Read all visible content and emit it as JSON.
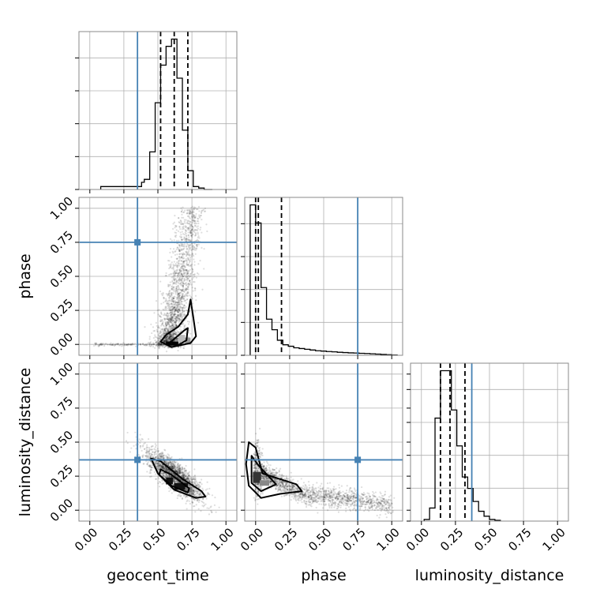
{
  "chart_data": {
    "type": "corner",
    "parameters": [
      "geocent_time",
      "phase",
      "luminosity_distance"
    ],
    "axis_labels": {
      "x": [
        "geocent_time",
        "phase",
        "luminosity_distance"
      ],
      "y": [
        "phase",
        "luminosity_distance"
      ]
    },
    "range": [
      0,
      1
    ],
    "ticks": [
      0.0,
      0.25,
      0.5,
      0.75,
      1.0
    ],
    "tick_labels": [
      "0.00",
      "0.25",
      "0.50",
      "0.75",
      "1.00"
    ],
    "grid": true,
    "truths": {
      "geocent_time": 0.35,
      "phase": 0.75,
      "luminosity_distance": 0.37
    },
    "truth_color": "#4682b4",
    "line_color": "#000000",
    "quantiles": {
      "geocent_time": [
        0.52,
        0.62,
        0.72
      ],
      "phase": [
        0.0,
        0.02,
        0.19
      ],
      "luminosity_distance": [
        0.14,
        0.21,
        0.32
      ]
    },
    "histograms": {
      "geocent_time": {
        "bins": [
          0.08,
          0.1,
          0.12,
          0.14,
          0.16,
          0.18,
          0.2,
          0.22,
          0.24,
          0.26,
          0.28,
          0.3,
          0.32,
          0.34,
          0.36,
          0.38,
          0.4,
          0.42,
          0.44,
          0.46,
          0.48,
          0.5,
          0.52,
          0.54,
          0.56,
          0.58,
          0.6,
          0.62,
          0.64,
          0.66,
          0.68,
          0.7,
          0.72,
          0.74,
          0.76,
          0.78,
          0.8,
          0.82,
          0.84,
          0.86,
          0.88,
          0.9
        ],
        "counts": [
          0.02,
          0.02,
          0.02,
          0.02,
          0.02,
          0.02,
          0.02,
          0.02,
          0.02,
          0.02,
          0.02,
          0.02,
          0.02,
          0.02,
          0.02,
          0.05,
          0.07,
          0.07,
          0.26,
          0.26,
          0.6,
          0.6,
          0.86,
          0.86,
          0.99,
          0.99,
          1.04,
          1.04,
          0.77,
          0.77,
          0.41,
          0.41,
          0.13,
          0.13,
          0.02,
          0.02,
          0.01,
          0.01,
          0.0,
          0.0,
          0.0
        ]
      },
      "phase": {
        "bins": [
          -0.04,
          0.0,
          0.04,
          0.08,
          0.12,
          0.16,
          0.2,
          0.24,
          0.28,
          0.32,
          0.36,
          0.4,
          0.44,
          0.48,
          0.52,
          0.56,
          0.6,
          0.64,
          0.68,
          0.72,
          0.76,
          0.8,
          0.84,
          0.88,
          0.92,
          0.96,
          1.0,
          1.04
        ],
        "counts": [
          1.0,
          0.88,
          0.45,
          0.24,
          0.17,
          0.1,
          0.07,
          0.06,
          0.05,
          0.045,
          0.04,
          0.035,
          0.03,
          0.028,
          0.025,
          0.023,
          0.02,
          0.018,
          0.016,
          0.015,
          0.013,
          0.012,
          0.01,
          0.008,
          0.006,
          0.004,
          0.002
        ]
      },
      "luminosity_distance": {
        "bins": [
          0.02,
          0.06,
          0.1,
          0.14,
          0.18,
          0.22,
          0.26,
          0.3,
          0.34,
          0.38,
          0.42,
          0.46,
          0.5,
          0.54,
          0.58
        ],
        "counts": [
          0.01,
          0.08,
          0.63,
          0.92,
          0.92,
          0.68,
          0.46,
          0.27,
          0.2,
          0.12,
          0.06,
          0.03,
          0.01,
          0.005
        ]
      }
    },
    "scatter_pairs": [
      {
        "x": "geocent_time",
        "y": "phase"
      },
      {
        "x": "geocent_time",
        "y": "luminosity_distance"
      },
      {
        "x": "phase",
        "y": "luminosity_distance"
      }
    ]
  }
}
